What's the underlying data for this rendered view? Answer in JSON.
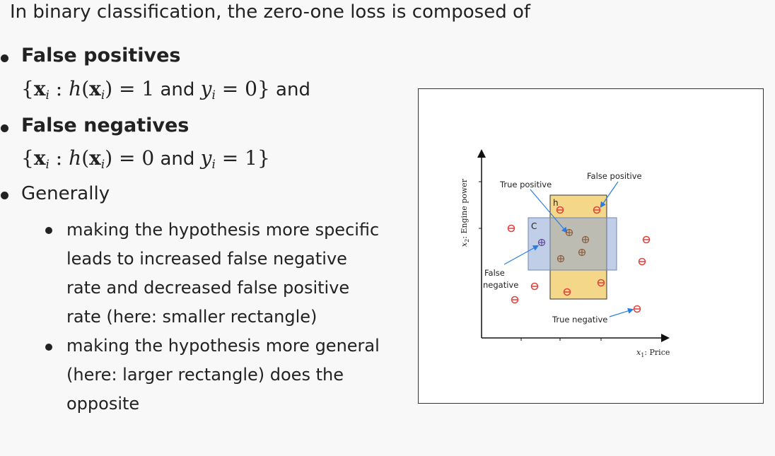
{
  "slide": {
    "intro": "In binary classification, the zero-one loss is composed of",
    "fp": {
      "heading": "False positives",
      "set_open": "{",
      "x_var": "x",
      "sub_i": "i",
      "colon": " : ",
      "h_fn": "h",
      "eq_one": ") = 1",
      "and_word": " and ",
      "y_var": "y",
      "eq_zero": " = 0",
      "set_close": "}",
      "trailing_and": " and"
    },
    "fn": {
      "heading": "False negatives",
      "set_open": "{",
      "x_var": "x",
      "sub_i": "i",
      "colon": " : ",
      "h_fn": "h",
      "eq_zero": ") = 0",
      "and_word": " and ",
      "y_var": "y",
      "eq_one": " = 1",
      "set_close": "}"
    },
    "generally": "Generally",
    "sub_bullets": [
      [
        "making the hypothesis more specific",
        "leads to increased false negative",
        "rate and decreased false positive",
        "rate (here: smaller rectangle)"
      ],
      [
        "making the hypothesis more general",
        "(here: larger rectangle) does the",
        "opposite"
      ]
    ]
  },
  "figure": {
    "y_axis_label": "x",
    "y_axis_sub": "2",
    "y_axis_text": ": Engine power",
    "x_axis_label": "x",
    "x_axis_sub": "1",
    "x_axis_text": ": Price",
    "label_true_positive": "True positive",
    "label_false_positive": "False positive",
    "label_false_negative_1": "False",
    "label_false_negative_2": "negative",
    "label_true_negative": "True negative",
    "label_h": "h",
    "label_c": "C",
    "colors": {
      "h_rect": "#f5d78a",
      "c_rect": "#8ea6d6",
      "negative_marker": "#e0413a",
      "positive_marker": "#8a5a3a",
      "arrow": "#2a7de0"
    }
  }
}
